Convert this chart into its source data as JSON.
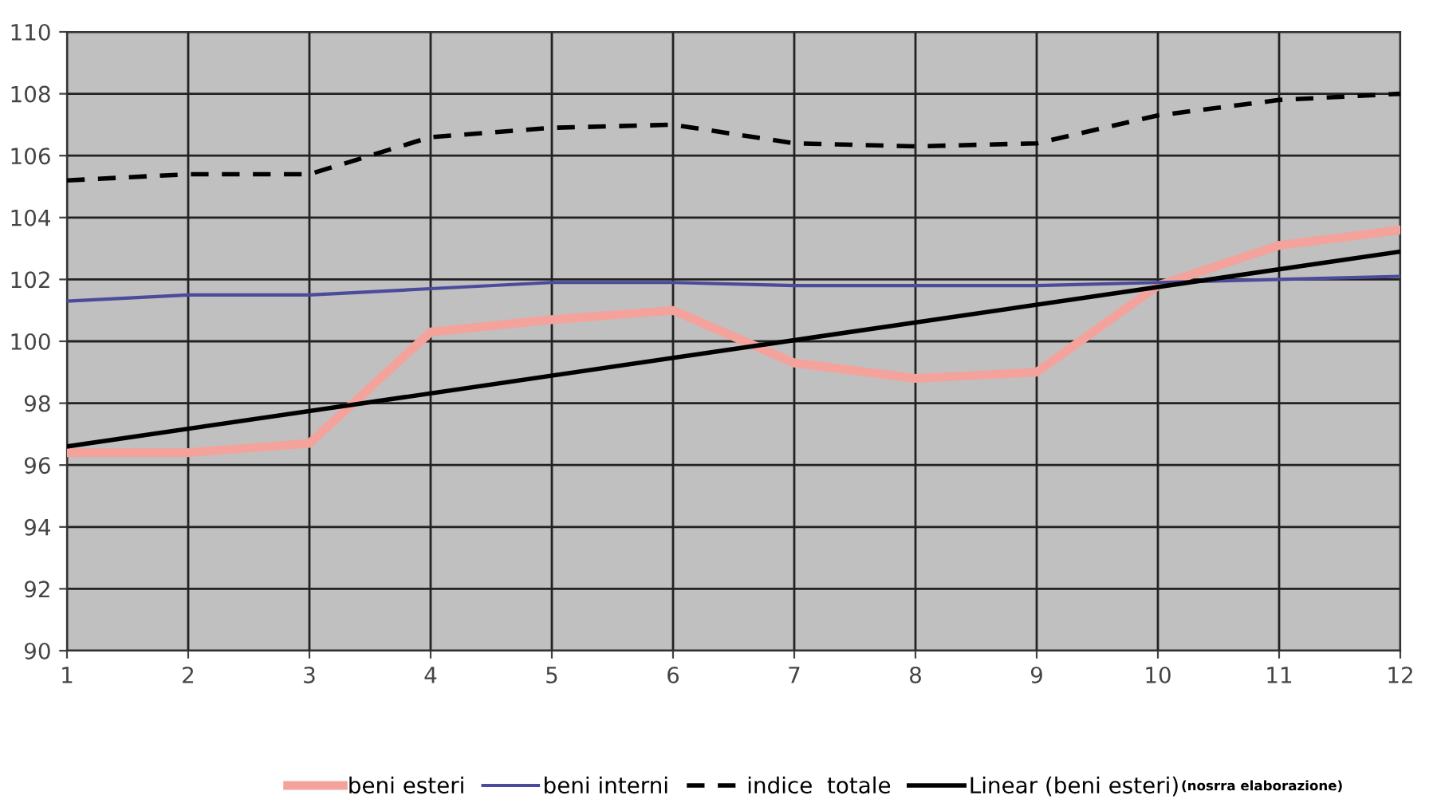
{
  "chart_data": {
    "type": "line",
    "x": [
      1,
      2,
      3,
      4,
      5,
      6,
      7,
      8,
      9,
      10,
      11,
      12
    ],
    "xlim": [
      1,
      12
    ],
    "xticks": [
      1,
      2,
      3,
      4,
      5,
      6,
      7,
      8,
      9,
      10,
      11,
      12
    ],
    "ylim": [
      90,
      110
    ],
    "yticks": [
      90,
      92,
      94,
      96,
      98,
      100,
      102,
      104,
      106,
      108,
      110
    ],
    "grid": true,
    "legend": "bottom",
    "marker": "none",
    "series": [
      {
        "name": "beni esteri",
        "color": "#f4a39c",
        "line_style": "solid",
        "values": [
          96.4,
          96.4,
          96.7,
          100.3,
          100.7,
          101.0,
          99.3,
          98.8,
          99.0,
          101.8,
          103.1,
          103.6
        ]
      },
      {
        "name": "beni interni",
        "color": "#4b4b9b",
        "line_style": "solid",
        "values": [
          101.3,
          101.5,
          101.5,
          101.7,
          101.9,
          101.9,
          101.8,
          101.8,
          101.8,
          101.9,
          102.0,
          102.1
        ]
      },
      {
        "name": "indice  totale",
        "color": "#000000",
        "line_style": "dashed",
        "values": [
          105.2,
          105.4,
          105.4,
          106.6,
          106.9,
          107.0,
          106.4,
          106.3,
          106.4,
          107.3,
          107.8,
          108.0
        ]
      },
      {
        "name": "Linear (beni esteri)",
        "color": "#000000",
        "line_style": "solid",
        "x": [
          1,
          12
        ],
        "values": [
          96.6,
          102.9
        ]
      }
    ],
    "annotations": [
      "(nosrra elaborazione)"
    ]
  }
}
